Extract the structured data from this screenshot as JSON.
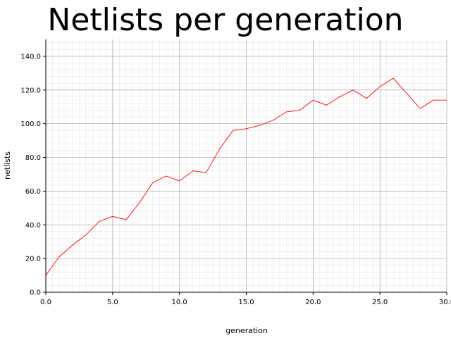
{
  "chart_data": {
    "type": "line",
    "title": "Netlists per generation",
    "xlabel": "generation",
    "ylabel": "netlists",
    "xlim": [
      0,
      30
    ],
    "ylim": [
      0,
      150
    ],
    "x_ticks": [
      "0.0",
      "5.0",
      "10.0",
      "15.0",
      "20.0",
      "25.0",
      "30.0"
    ],
    "y_ticks": [
      "0.0",
      "20.0",
      "40.0",
      "60.0",
      "80.0",
      "100.0",
      "120.0",
      "140.0"
    ],
    "grid": true,
    "series": [
      {
        "color": "#ff0000",
        "x": [
          0,
          1,
          2,
          3,
          4,
          5,
          6,
          7,
          8,
          9,
          10,
          11,
          12,
          13,
          14,
          15,
          16,
          17,
          18,
          19,
          20,
          21,
          22,
          23,
          24,
          25,
          26,
          27,
          28,
          29,
          30
        ],
        "y": [
          10,
          21,
          28,
          34,
          42,
          45,
          43,
          53,
          65,
          69,
          66,
          72,
          71,
          85,
          96,
          97,
          99,
          102,
          107,
          108,
          114,
          111,
          116,
          120,
          115,
          122,
          127,
          118,
          109,
          114,
          114
        ]
      }
    ]
  }
}
